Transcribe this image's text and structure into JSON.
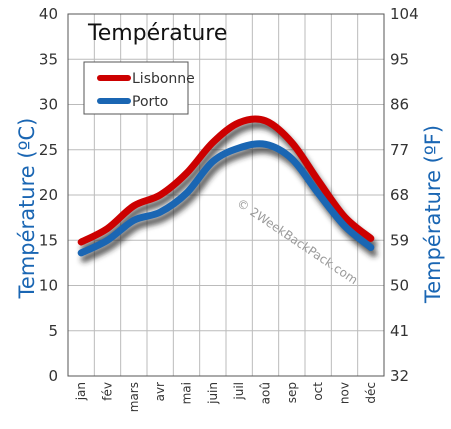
{
  "chart_data": {
    "type": "line",
    "title": "Température",
    "ylabel_left": "Température  (ºC)",
    "ylabel_right": "Température  (ºF)",
    "categories": [
      "jan",
      "fév",
      "mars",
      "avr",
      "mai",
      "juin",
      "juil",
      "aoû",
      "sep",
      "oct",
      "nov",
      "déc"
    ],
    "ylim": [
      0,
      40
    ],
    "yticks_left": [
      "0",
      "5",
      "10",
      "15",
      "20",
      "25",
      "30",
      "35",
      "40"
    ],
    "yticks_right": [
      "32",
      "41",
      "50",
      "59",
      "68",
      "77",
      "86",
      "95",
      "104"
    ],
    "grid": true,
    "legend_position": "top-left",
    "series": [
      {
        "name": "Lisbonne",
        "color": "#cc0000",
        "values": [
          14.8,
          16.3,
          18.8,
          20.0,
          22.4,
          25.8,
          28.0,
          28.2,
          25.8,
          21.6,
          17.6,
          15.2
        ]
      },
      {
        "name": "Porto",
        "color": "#1a66b3",
        "values": [
          13.6,
          15.0,
          17.2,
          18.1,
          20.2,
          23.7,
          25.2,
          25.6,
          24.0,
          20.2,
          16.6,
          14.2
        ]
      }
    ],
    "watermark": "© 2WeekBackPack.com"
  }
}
